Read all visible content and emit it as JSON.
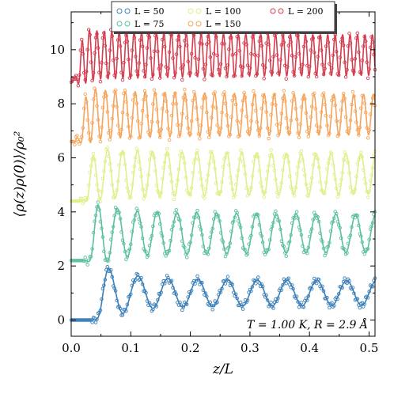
{
  "chart_data": {
    "type": "line",
    "xlabel": "z/L",
    "ylabel": "⟨ρ(z)ρ(0)⟩/ρ₀²",
    "xlim": [
      0.0,
      0.51
    ],
    "ylim": [
      -0.6,
      11.4
    ],
    "x_ticks": [
      "0.0",
      "0.1",
      "0.2",
      "0.3",
      "0.4",
      "0.5"
    ],
    "y_ticks": [
      "0",
      "2",
      "4",
      "6",
      "8",
      "10"
    ],
    "annotation": "T = 1.00 K,  R = 2.9 Å",
    "legend_position": "top-center",
    "series": [
      {
        "name": "L = 50",
        "color": "#3a7fb8",
        "offset": 0.0,
        "cycles_per_L": 20,
        "amplitude": 0.55,
        "onset": 0.05,
        "peak": 2.0
      },
      {
        "name": "L = 75",
        "color": "#5cc0a0",
        "offset": 2.2,
        "cycles_per_L": 30,
        "amplitude": 0.85,
        "onset": 0.036,
        "peak": 4.5
      },
      {
        "name": "L = 100",
        "color": "#e1ee8a",
        "offset": 4.4,
        "cycles_per_L": 40,
        "amplitude": 0.9,
        "onset": 0.03,
        "peak": 6.4
      },
      {
        "name": "L = 150",
        "color": "#f6a55c",
        "offset": 6.6,
        "cycles_per_L": 60,
        "amplitude": 0.9,
        "onset": 0.02,
        "peak": 8.8
      },
      {
        "name": "L = 200",
        "color": "#d53d4f",
        "offset": 8.8,
        "cycles_per_L": 80,
        "amplitude": 0.9,
        "onset": 0.015,
        "peak": 11.0
      }
    ]
  }
}
